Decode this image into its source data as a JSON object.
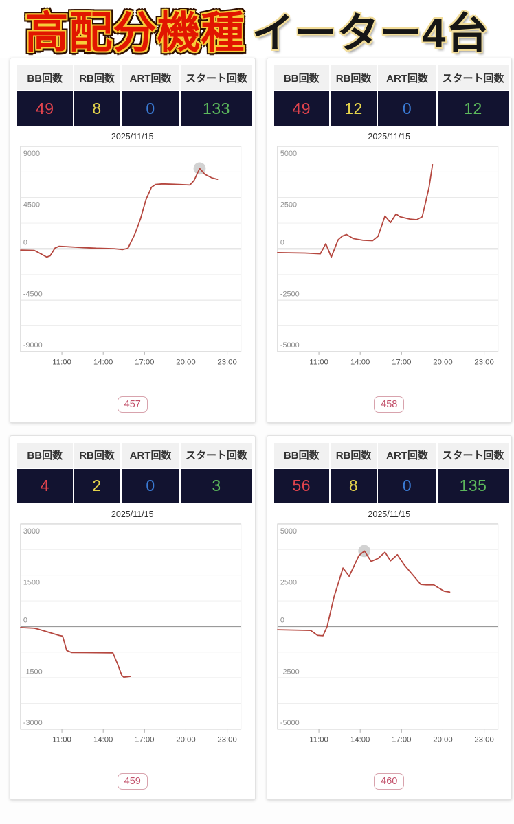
{
  "header": {
    "title_highlight": "高配分機種",
    "title_main": "イーター4台"
  },
  "table_headers": [
    "BB回数",
    "RB回数",
    "ART回数",
    "スタート回数"
  ],
  "colors": {
    "bb": "#e0434d",
    "rb": "#e3d24b",
    "art": "#3a7bd5",
    "start": "#5cb85c",
    "line": "#b5473f",
    "marker": "#cacaca",
    "badge": "#c2506a",
    "value_row_bg": "#121330"
  },
  "chart_common": {
    "x_range": [
      8,
      24
    ],
    "x_ticks": [
      {
        "h": 11,
        "label": "11:00"
      },
      {
        "h": 14,
        "label": "14:00"
      },
      {
        "h": 17,
        "label": "17:00"
      },
      {
        "h": 20,
        "label": "20:00"
      },
      {
        "h": 23,
        "label": "23:00"
      }
    ]
  },
  "machines": [
    {
      "id": "457",
      "date": "2025/11/15",
      "stats": {
        "bb": "49",
        "rb": "8",
        "art": "0",
        "start": "133"
      },
      "chart_data": {
        "type": "line",
        "title": "2025/11/15",
        "ylim": 9000,
        "y_ticks": [
          9000,
          4500,
          0,
          -4500,
          -9000
        ],
        "x_tick_labels": [
          "11:00",
          "14:00",
          "17:00",
          "20:00",
          "23:00"
        ],
        "points": [
          [
            8.0,
            -100
          ],
          [
            9.0,
            -130
          ],
          [
            9.5,
            -450
          ],
          [
            9.9,
            -720
          ],
          [
            10.15,
            -600
          ],
          [
            10.5,
            80
          ],
          [
            10.8,
            230
          ],
          [
            11.3,
            200
          ],
          [
            12.5,
            120
          ],
          [
            13.5,
            60
          ],
          [
            14.8,
            20
          ],
          [
            15.4,
            -60
          ],
          [
            15.8,
            60
          ],
          [
            16.3,
            1300
          ],
          [
            16.7,
            2600
          ],
          [
            17.1,
            4300
          ],
          [
            17.5,
            5400
          ],
          [
            17.8,
            5650
          ],
          [
            18.3,
            5700
          ],
          [
            19.5,
            5650
          ],
          [
            20.3,
            5600
          ],
          [
            20.6,
            6000
          ],
          [
            21.0,
            7050
          ],
          [
            21.4,
            6520
          ],
          [
            21.9,
            6220
          ],
          [
            22.3,
            6100
          ]
        ],
        "marker": [
          21.0,
          7050
        ]
      }
    },
    {
      "id": "458",
      "date": "2025/11/15",
      "stats": {
        "bb": "49",
        "rb": "12",
        "art": "0",
        "start": "12"
      },
      "chart_data": {
        "type": "line",
        "title": "2025/11/15",
        "ylim": 5000,
        "y_ticks": [
          5000,
          2500,
          0,
          -2500,
          -5000
        ],
        "x_tick_labels": [
          "11:00",
          "14:00",
          "17:00",
          "20:00",
          "23:00"
        ],
        "points": [
          [
            8.0,
            -180
          ],
          [
            10.0,
            -200
          ],
          [
            11.1,
            -240
          ],
          [
            11.5,
            250
          ],
          [
            11.9,
            -400
          ],
          [
            12.4,
            450
          ],
          [
            12.7,
            620
          ],
          [
            13.0,
            700
          ],
          [
            13.5,
            500
          ],
          [
            14.2,
            420
          ],
          [
            14.9,
            400
          ],
          [
            15.3,
            620
          ],
          [
            15.8,
            1600
          ],
          [
            16.2,
            1280
          ],
          [
            16.6,
            1700
          ],
          [
            16.9,
            1560
          ],
          [
            17.6,
            1450
          ],
          [
            18.1,
            1420
          ],
          [
            18.5,
            1560
          ],
          [
            19.0,
            3000
          ],
          [
            19.25,
            4100
          ]
        ],
        "marker": null
      }
    },
    {
      "id": "459",
      "date": "2025/11/15",
      "stats": {
        "bb": "4",
        "rb": "2",
        "art": "0",
        "start": "3"
      },
      "chart_data": {
        "type": "line",
        "title": "2025/11/15",
        "ylim": 3000,
        "y_ticks": [
          3000,
          1500,
          0,
          -1500,
          -3000
        ],
        "x_tick_labels": [
          "11:00",
          "14:00",
          "17:00",
          "20:00",
          "23:00"
        ],
        "points": [
          [
            8.0,
            -30
          ],
          [
            9.0,
            -50
          ],
          [
            9.3,
            -80
          ],
          [
            10.8,
            -260
          ],
          [
            11.05,
            -280
          ],
          [
            11.35,
            -700
          ],
          [
            11.7,
            -760
          ],
          [
            14.7,
            -770
          ],
          [
            15.05,
            -1100
          ],
          [
            15.35,
            -1430
          ],
          [
            15.5,
            -1480
          ],
          [
            15.95,
            -1460
          ]
        ],
        "marker": null
      }
    },
    {
      "id": "460",
      "date": "2025/11/15",
      "stats": {
        "bb": "56",
        "rb": "8",
        "art": "0",
        "start": "135"
      },
      "chart_data": {
        "type": "line",
        "title": "2025/11/15",
        "ylim": 5000,
        "y_ticks": [
          5000,
          2500,
          0,
          -2500,
          -5000
        ],
        "x_tick_labels": [
          "11:00",
          "14:00",
          "17:00",
          "20:00",
          "23:00"
        ],
        "points": [
          [
            8.0,
            -160
          ],
          [
            10.4,
            -190
          ],
          [
            10.9,
            -430
          ],
          [
            11.3,
            -450
          ],
          [
            11.6,
            0
          ],
          [
            12.1,
            1450
          ],
          [
            12.75,
            2850
          ],
          [
            13.2,
            2450
          ],
          [
            13.9,
            3450
          ],
          [
            14.3,
            3680
          ],
          [
            14.8,
            3170
          ],
          [
            15.3,
            3320
          ],
          [
            15.8,
            3620
          ],
          [
            16.2,
            3200
          ],
          [
            16.7,
            3500
          ],
          [
            17.2,
            3000
          ],
          [
            17.9,
            2450
          ],
          [
            18.4,
            2050
          ],
          [
            18.8,
            2030
          ],
          [
            19.35,
            2030
          ],
          [
            19.6,
            1920
          ],
          [
            20.1,
            1720
          ],
          [
            20.5,
            1680
          ]
        ],
        "marker": [
          14.3,
          3680
        ]
      }
    }
  ]
}
